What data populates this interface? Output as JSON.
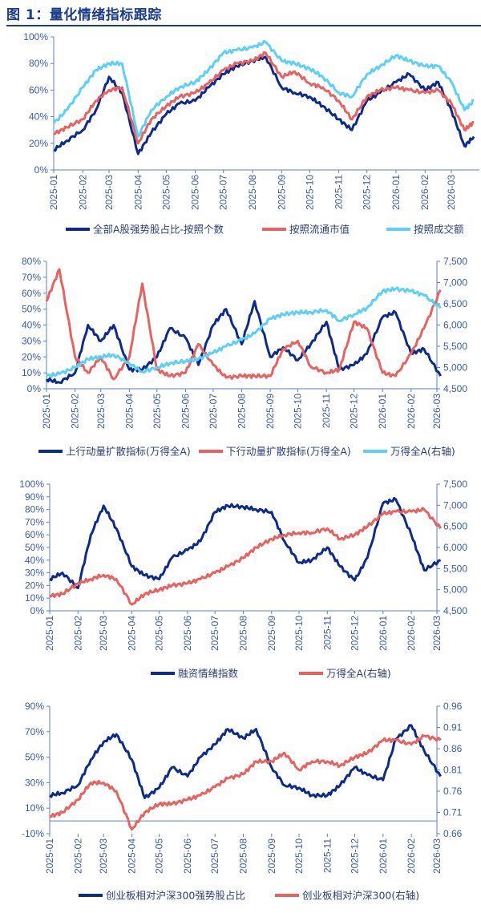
{
  "figure_title": "图 1：量化情绪指标跟踪",
  "colors": {
    "dark_blue": "#0d2b8c",
    "red": "#e8625f",
    "cyan": "#5cd0f6",
    "axis": "#5b7fc6",
    "title": "#1a3c8c"
  },
  "chart_data": [
    {
      "type": "line",
      "x_ticks": [
        "2025-01",
        "2025-02",
        "2025-03",
        "2025-04",
        "2025-05",
        "2025-06",
        "2025-07",
        "2025-08",
        "2025-09",
        "2025-10",
        "2025-11",
        "2025-12",
        "2026-01",
        "2026-02",
        "2026-03"
      ],
      "y_ticks": [
        "0%",
        "20%",
        "40%",
        "60%",
        "80%",
        "100%"
      ],
      "ylim": [
        0,
        100
      ],
      "legend_position": "bottom",
      "x": [
        "2025-01-01",
        "2025-01-15",
        "2025-02-01",
        "2025-02-15",
        "2025-03-01",
        "2025-03-15",
        "2025-04-01",
        "2025-04-15",
        "2025-05-01",
        "2025-05-15",
        "2025-06-01",
        "2025-06-15",
        "2025-07-01",
        "2025-07-15",
        "2025-08-01",
        "2025-08-15",
        "2025-09-01",
        "2025-09-15",
        "2025-10-01",
        "2025-10-15",
        "2025-11-01",
        "2025-11-15",
        "2025-12-01",
        "2025-12-15",
        "2026-01-01",
        "2026-01-15",
        "2026-02-01",
        "2026-02-15",
        "2026-03-01",
        "2026-03-15",
        "2026-03-25"
      ],
      "series": [
        {
          "name": "全部A股强势股占比-按照个数",
          "color": "#0d2b8c",
          "values": [
            15,
            22,
            30,
            45,
            70,
            58,
            12,
            28,
            42,
            50,
            52,
            62,
            72,
            78,
            82,
            85,
            62,
            58,
            55,
            48,
            38,
            30,
            52,
            58,
            66,
            72,
            60,
            66,
            45,
            18,
            25
          ]
        },
        {
          "name": "按照流通市值",
          "color": "#e8625f",
          "values": [
            27,
            32,
            38,
            52,
            60,
            62,
            20,
            38,
            48,
            55,
            58,
            65,
            75,
            80,
            82,
            88,
            70,
            74,
            65,
            62,
            52,
            38,
            55,
            60,
            62,
            60,
            58,
            60,
            50,
            30,
            36
          ]
        },
        {
          "name": "按照成交额",
          "color": "#5cd0f6",
          "values": [
            35,
            45,
            62,
            75,
            80,
            80,
            25,
            45,
            55,
            62,
            66,
            75,
            88,
            90,
            92,
            96,
            82,
            80,
            76,
            70,
            58,
            55,
            72,
            78,
            86,
            82,
            78,
            78,
            66,
            45,
            52
          ]
        }
      ]
    },
    {
      "type": "line",
      "x_ticks": [
        "2025-01",
        "2025-02",
        "2025-03",
        "2025-04",
        "2025-05",
        "2025-06",
        "2025-07",
        "2025-08",
        "2025-09",
        "2025-10",
        "2025-11",
        "2025-12",
        "2026-01",
        "2026-02",
        "2026-03"
      ],
      "y_ticks": [
        "0%",
        "10%",
        "20%",
        "30%",
        "40%",
        "50%",
        "60%",
        "70%",
        "80%"
      ],
      "y2_ticks": [
        "4,500",
        "5,000",
        "5,500",
        "6,000",
        "6,500",
        "7,000",
        "7,500"
      ],
      "ylim": [
        0,
        80
      ],
      "y2lim": [
        4500,
        7500
      ],
      "legend_position": "bottom",
      "x": [
        "2025-01-01",
        "2025-01-15",
        "2025-02-01",
        "2025-02-15",
        "2025-03-01",
        "2025-03-15",
        "2025-04-01",
        "2025-04-15",
        "2025-05-01",
        "2025-05-15",
        "2025-06-01",
        "2025-06-15",
        "2025-07-01",
        "2025-07-15",
        "2025-08-01",
        "2025-08-15",
        "2025-09-01",
        "2025-09-15",
        "2025-10-01",
        "2025-10-15",
        "2025-11-01",
        "2025-11-15",
        "2025-12-01",
        "2025-12-15",
        "2026-01-01",
        "2026-01-15",
        "2026-02-01",
        "2026-02-15",
        "2026-03-05"
      ],
      "series": [
        {
          "name": "上行动量扩散指标(万得全A)",
          "color": "#0d2b8c",
          "axis": "left",
          "values": [
            6,
            4,
            10,
            40,
            30,
            40,
            12,
            12,
            20,
            38,
            32,
            15,
            40,
            50,
            28,
            55,
            20,
            26,
            18,
            28,
            42,
            12,
            15,
            22,
            45,
            48,
            22,
            25,
            8
          ]
        },
        {
          "name": "下行动量扩散指标(万得全A)",
          "color": "#e8625f",
          "axis": "left",
          "values": [
            55,
            75,
            20,
            10,
            20,
            6,
            20,
            66,
            12,
            8,
            10,
            28,
            15,
            7,
            8,
            8,
            8,
            25,
            30,
            14,
            10,
            12,
            42,
            38,
            10,
            8,
            22,
            38,
            62
          ]
        },
        {
          "name": "万得全A(右轴)",
          "color": "#5cd0f6",
          "axis": "right",
          "values": [
            4800,
            4850,
            5000,
            5200,
            5250,
            5300,
            5100,
            4900,
            5000,
            5100,
            5150,
            5200,
            5350,
            5500,
            5650,
            5800,
            6150,
            6250,
            6300,
            6300,
            6350,
            6100,
            6250,
            6400,
            6800,
            6850,
            6800,
            6700,
            6400
          ]
        }
      ]
    },
    {
      "type": "line",
      "x_ticks": [
        "2025-01",
        "2025-02",
        "2025-03",
        "2025-04",
        "2025-05",
        "2025-06",
        "2025-07",
        "2025-08",
        "2025-09",
        "2025-10",
        "2025-11",
        "2025-12",
        "2026-01",
        "2026-02",
        "2026-03"
      ],
      "y_ticks": [
        "0%",
        "10%",
        "20%",
        "30%",
        "40%",
        "50%",
        "60%",
        "70%",
        "80%",
        "90%",
        "100%"
      ],
      "y2_ticks": [
        "4,500",
        "5,000",
        "5,500",
        "6,000",
        "6,500",
        "7,000",
        "7,500"
      ],
      "ylim": [
        0,
        100
      ],
      "y2lim": [
        4500,
        7500
      ],
      "legend_position": "bottom",
      "x": [
        "2025-01-01",
        "2025-01-15",
        "2025-02-01",
        "2025-02-15",
        "2025-03-01",
        "2025-03-15",
        "2025-04-01",
        "2025-04-15",
        "2025-05-01",
        "2025-05-15",
        "2025-06-01",
        "2025-06-15",
        "2025-07-01",
        "2025-07-15",
        "2025-08-01",
        "2025-08-15",
        "2025-09-01",
        "2025-09-15",
        "2025-10-01",
        "2025-10-15",
        "2025-11-01",
        "2025-11-15",
        "2025-12-01",
        "2025-12-15",
        "2026-01-01",
        "2026-01-15",
        "2026-02-01",
        "2026-02-15",
        "2026-03-05"
      ],
      "series": [
        {
          "name": "融资情绪指数",
          "color": "#0d2b8c",
          "axis": "left",
          "values": [
            25,
            30,
            18,
            60,
            83,
            65,
            35,
            28,
            25,
            42,
            48,
            55,
            78,
            83,
            82,
            80,
            78,
            55,
            38,
            40,
            50,
            35,
            24,
            42,
            85,
            88,
            60,
            32,
            40
          ]
        },
        {
          "name": "万得全A(右轴)",
          "color": "#e8625f",
          "axis": "right",
          "values": [
            4850,
            4900,
            5150,
            5250,
            5350,
            5250,
            4650,
            4900,
            5000,
            5100,
            5150,
            5250,
            5400,
            5550,
            5750,
            6000,
            6200,
            6300,
            6350,
            6350,
            6450,
            6200,
            6300,
            6500,
            6800,
            6850,
            6850,
            6900,
            6450
          ]
        }
      ]
    },
    {
      "type": "line",
      "x_ticks": [
        "2025-01",
        "2025-02",
        "2025-03",
        "2025-04",
        "2025-05",
        "2025-06",
        "2025-07",
        "2025-08",
        "2025-09",
        "2025-10",
        "2025-11",
        "2025-12",
        "2026-01",
        "2026-02",
        "2026-03"
      ],
      "y_ticks": [
        "-10%",
        "10%",
        "30%",
        "50%",
        "70%",
        "90%"
      ],
      "y2_ticks": [
        "0.66",
        "0.71",
        "0.76",
        "0.81",
        "0.86",
        "0.91",
        "0.96"
      ],
      "ylim": [
        -10,
        90
      ],
      "y2lim": [
        0.66,
        0.96
      ],
      "legend_position": "bottom",
      "x": [
        "2025-01-01",
        "2025-01-15",
        "2025-02-01",
        "2025-02-15",
        "2025-03-01",
        "2025-03-15",
        "2025-04-01",
        "2025-04-15",
        "2025-05-01",
        "2025-05-15",
        "2025-06-01",
        "2025-06-15",
        "2025-07-01",
        "2025-07-15",
        "2025-08-01",
        "2025-08-15",
        "2025-09-01",
        "2025-09-15",
        "2025-10-01",
        "2025-10-15",
        "2025-11-01",
        "2025-11-15",
        "2025-12-01",
        "2025-12-15",
        "2026-01-01",
        "2026-01-15",
        "2026-02-01",
        "2026-02-15",
        "2026-03-05"
      ],
      "series": [
        {
          "name": "创业板相对沪深300强势股占比",
          "color": "#0d2b8c",
          "axis": "left",
          "values": [
            20,
            22,
            28,
            48,
            62,
            68,
            48,
            18,
            26,
            42,
            35,
            50,
            60,
            72,
            65,
            72,
            42,
            28,
            26,
            20,
            20,
            28,
            42,
            36,
            32,
            64,
            75,
            55,
            35
          ]
        },
        {
          "name": "创业板相对沪深300(右轴)",
          "color": "#e8625f",
          "axis": "right",
          "values": [
            0.7,
            0.71,
            0.74,
            0.78,
            0.78,
            0.76,
            0.67,
            0.71,
            0.73,
            0.73,
            0.74,
            0.75,
            0.77,
            0.79,
            0.8,
            0.83,
            0.83,
            0.85,
            0.81,
            0.83,
            0.83,
            0.82,
            0.84,
            0.85,
            0.88,
            0.88,
            0.87,
            0.89,
            0.88
          ]
        }
      ]
    }
  ]
}
